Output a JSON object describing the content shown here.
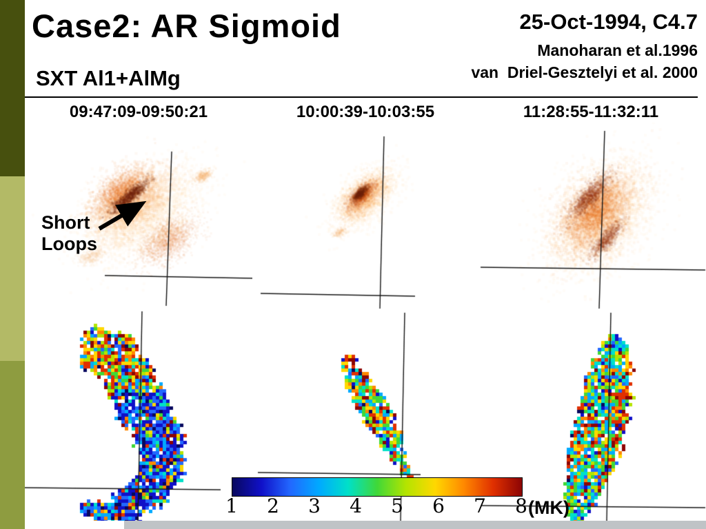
{
  "slide": {
    "title": "Case2: AR Sigmoid",
    "event_label": "25-Oct-1994, C4.7",
    "references": [
      "Manoharan et al.1996",
      "van  Driel-Gesztelyi et al. 2000"
    ],
    "filter_label": "SXT Al1+AlMg",
    "annotation": {
      "line1": "Short",
      "line2": "Loops"
    }
  },
  "panels": {
    "times": [
      "09:47:09-09:50:21",
      "10:00:39-10:03:55",
      "11:28:55-11:32:11"
    ]
  },
  "colorbar": {
    "ticks": [
      "1",
      "2",
      "3",
      "4",
      "5",
      "6",
      "7",
      "8"
    ],
    "unit_label": "(MK)",
    "colors": [
      "#08085e",
      "#1010c8",
      "#2268ff",
      "#00aaff",
      "#00e0c8",
      "#40d838",
      "#b4e400",
      "#ffd800",
      "#ff8800",
      "#e03000",
      "#8c0404"
    ]
  }
}
